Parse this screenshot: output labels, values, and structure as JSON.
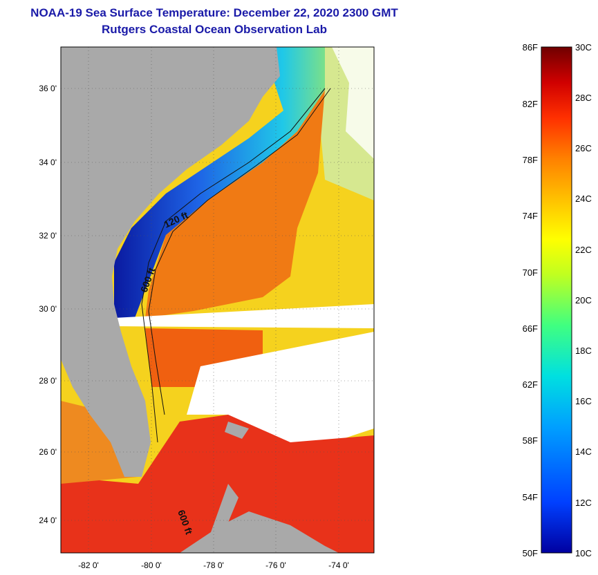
{
  "title": {
    "line1": "NOAA-19 Sea Surface Temperature:  December 22, 2020 2300 GMT",
    "line2": "Rutgers Coastal Ocean Observation Lab"
  },
  "map": {
    "lat_labels": [
      "36 0'",
      "34 0'",
      "32 0'",
      "30 0'",
      "28 0'",
      "26 0'",
      "24 0'"
    ],
    "lon_labels": [
      "-82 0'",
      "-80 0'",
      "-78 0'",
      "-76 0'",
      "-74 0'"
    ],
    "contour_labels": [
      "120 ft",
      "600 ft",
      "600 ft"
    ],
    "colors": {
      "land": "#a9a9a9",
      "cloud": "#ffffff",
      "gulf_stream": "#f07a14",
      "offshore": "#f5d21e",
      "shelf_cold": "#1e64e6",
      "shelf_deep": "#0a1aa0",
      "bahamas": "#e8321a"
    }
  },
  "colorbar": {
    "f_labels": [
      "86F",
      "82F",
      "78F",
      "74F",
      "70F",
      "66F",
      "62F",
      "58F",
      "54F",
      "50F"
    ],
    "c_labels": [
      "30C",
      "28C",
      "26C",
      "24C",
      "22C",
      "20C",
      "18C",
      "16C",
      "14C",
      "12C",
      "10C"
    ],
    "gradient": [
      "#0000a0",
      "#0040ff",
      "#00a0ff",
      "#00e0e0",
      "#40ff80",
      "#c0ff20",
      "#ffff00",
      "#ffc000",
      "#ff8000",
      "#ff3000",
      "#d00000",
      "#700000"
    ]
  }
}
